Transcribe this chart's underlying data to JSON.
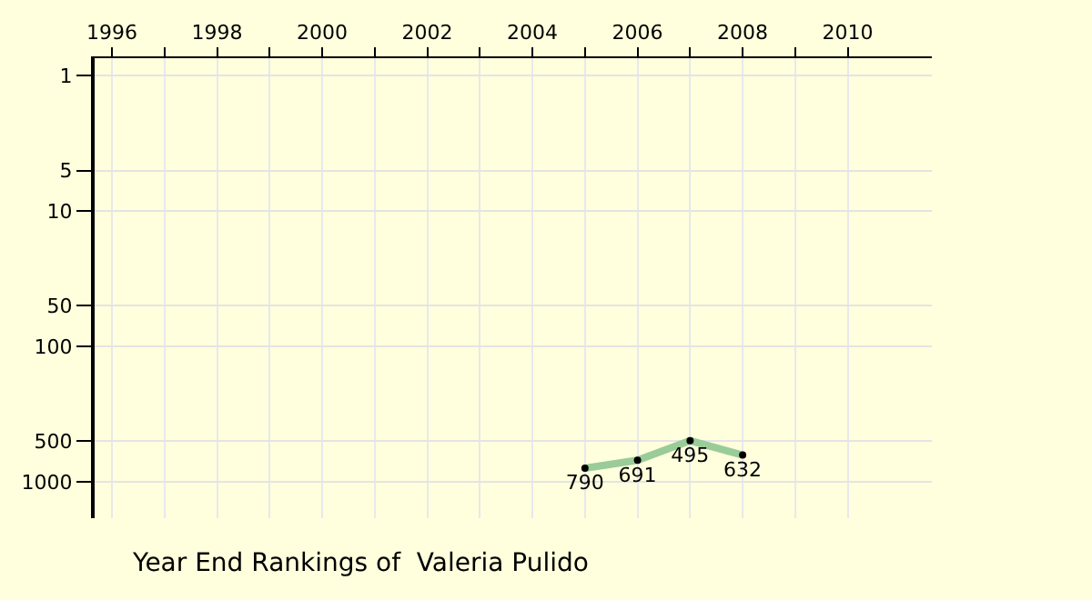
{
  "chart_data": {
    "type": "line",
    "title": "Year End Rankings of  Valeria Pulido",
    "x": [
      2005,
      2006,
      2007,
      2008
    ],
    "series": [
      {
        "color": "#99cc99",
        "values": [
          790,
          691,
          495,
          632
        ]
      }
    ],
    "data_labels": true,
    "marker": "circle",
    "line_style": "solid",
    "log": "y",
    "grid": true,
    "xlim": [
      1995.67,
      2011.6
    ],
    "xticks": [
      1996,
      {
        "value": 1997,
        "label": null
      },
      1998,
      {
        "value": 1999,
        "label": null
      },
      2000,
      {
        "value": 2001,
        "label": null
      },
      2002,
      {
        "value": 2003,
        "label": null
      },
      2004,
      {
        "value": 2005,
        "label": null
      },
      2006,
      {
        "value": 2007,
        "label": null
      },
      2008,
      {
        "value": 2009,
        "label": null
      },
      2010
    ],
    "ylim": [
      1850,
      0.74
    ],
    "yticks": [
      1,
      5,
      10,
      50,
      100,
      500,
      1000
    ]
  }
}
